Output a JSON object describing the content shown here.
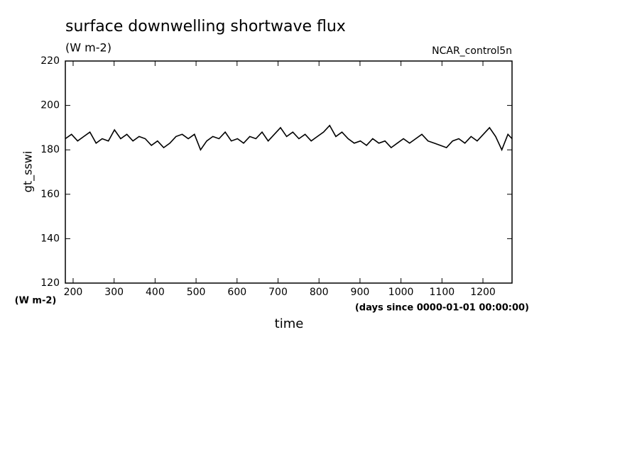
{
  "chart_data": {
    "type": "line",
    "title": "surface downwelling shortwave flux",
    "subtitle": "(W m-2)",
    "annotation": "NCAR_control5n",
    "y_label": "gt_sswi",
    "y_units": "(W m-2)",
    "x_label": "time",
    "x_units": "(days since 0000-01-01 00:00:00)",
    "xlim": [
      181,
      1271
    ],
    "ylim": [
      120,
      220
    ],
    "xticks": [
      200,
      300,
      400,
      500,
      600,
      700,
      800,
      900,
      1000,
      1100,
      1200
    ],
    "yticks": [
      120,
      140,
      160,
      180,
      200,
      220
    ],
    "x": [
      181,
      196,
      211,
      226,
      241,
      256,
      271,
      286,
      301,
      316,
      331,
      346,
      361,
      376,
      391,
      406,
      421,
      436,
      451,
      466,
      481,
      496,
      511,
      526,
      541,
      556,
      571,
      586,
      601,
      616,
      631,
      646,
      661,
      676,
      691,
      706,
      721,
      736,
      751,
      766,
      781,
      796,
      811,
      826,
      841,
      856,
      871,
      886,
      901,
      916,
      931,
      946,
      961,
      976,
      991,
      1006,
      1021,
      1036,
      1051,
      1066,
      1081,
      1096,
      1111,
      1126,
      1141,
      1156,
      1171,
      1186,
      1201,
      1216,
      1231,
      1246,
      1261,
      1271
    ],
    "series": [
      {
        "color": "#000000",
        "values": [
          185,
          187,
          184,
          186,
          188,
          183,
          185,
          184,
          189,
          185,
          187,
          184,
          186,
          185,
          182,
          184,
          181,
          183,
          186,
          187,
          185,
          187,
          180,
          184,
          186,
          185,
          188,
          184,
          185,
          183,
          186,
          185,
          188,
          184,
          187,
          190,
          186,
          188,
          185,
          187,
          184,
          186,
          188,
          191,
          186,
          188,
          185,
          183,
          184,
          182,
          185,
          183,
          184,
          181,
          183,
          185,
          183,
          185,
          187,
          184,
          183,
          182,
          181,
          184,
          185,
          183,
          186,
          184,
          187,
          190,
          186,
          180,
          187,
          185
        ]
      }
    ]
  }
}
